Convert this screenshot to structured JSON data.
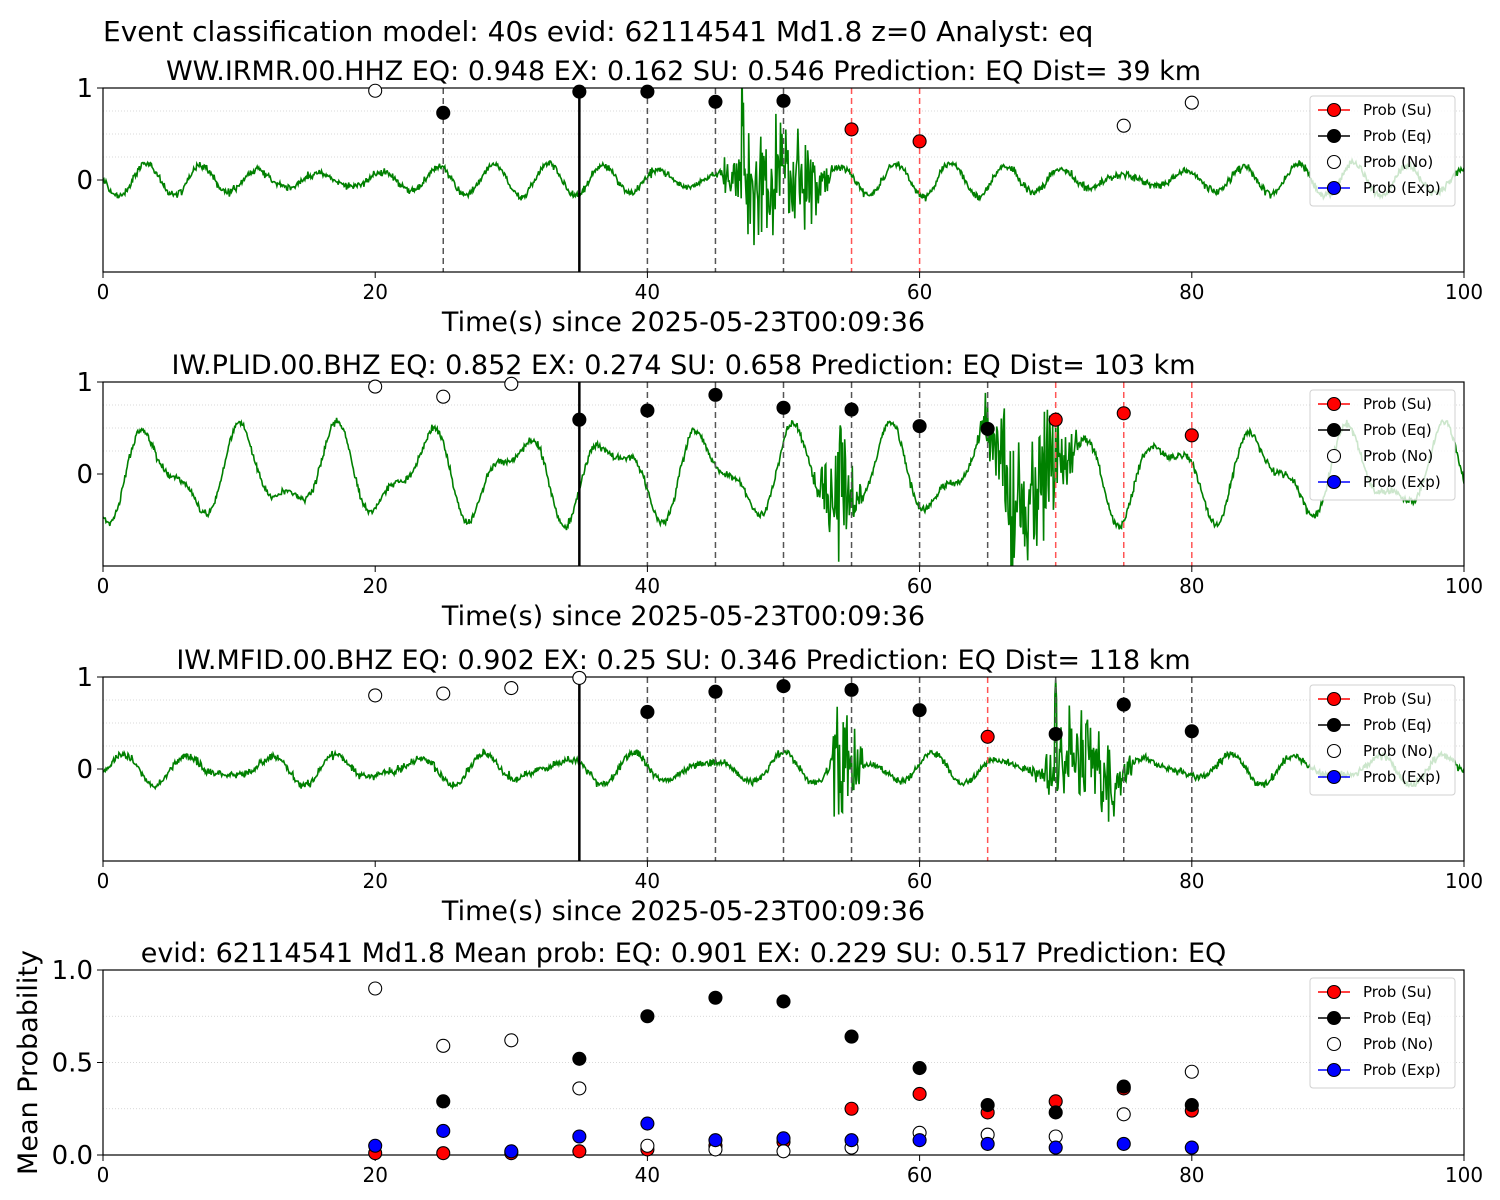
{
  "suptitle": "Event classification model: 40s evid: 62114541 Md1.8 z=0 Analyst: eq",
  "legend_labels": [
    "Prob (Su)",
    "Prob (Eq)",
    "Prob (No)",
    "Prob (Exp)"
  ],
  "colors": {
    "su": "#ff0000",
    "eq": "#000000",
    "no": "#ffffff",
    "exp": "#0000ff",
    "waveform": "#008000",
    "su_line": "#ff5555",
    "eq_line": "#555555",
    "pick_line": "#000000"
  },
  "chart_data": [
    {
      "type": "scatter",
      "title": "WW.IRMR.00.HHZ   EQ: 0.948  EX: 0.162  SU: 0.546   Prediction: EQ    Dist= 39 km",
      "xlabel": "Time(s) since 2025-05-23T00:09:36",
      "ylabel": "",
      "xlim": [
        0,
        100
      ],
      "ylim": [
        -1,
        1
      ],
      "xticks": [
        "0",
        "20",
        "40",
        "60",
        "80",
        "100"
      ],
      "yticks": [
        "0",
        "1"
      ],
      "grid": "horizontal dotted",
      "legend_position": "top-right",
      "p_pick": 35,
      "waveform": "noisy seismogram, burst between 45 and 54 s",
      "series": [
        {
          "name": "Prob (Su)",
          "x": [
            55,
            60
          ],
          "y": [
            0.55,
            0.42
          ]
        },
        {
          "name": "Prob (Eq)",
          "x": [
            25,
            35,
            40,
            45,
            50
          ],
          "y": [
            0.73,
            0.96,
            0.96,
            0.85,
            0.86
          ]
        },
        {
          "name": "Prob (No)",
          "x": [
            20,
            75,
            80
          ],
          "y": [
            0.97,
            0.59,
            0.84
          ]
        },
        {
          "name": "Prob (Exp)",
          "x": [],
          "y": []
        }
      ]
    },
    {
      "type": "scatter",
      "title": "IW.PLID.00.BHZ   EQ: 0.852  EX: 0.274  SU: 0.658   Prediction: EQ    Dist= 103 km",
      "xlabel": "Time(s) since 2025-05-23T00:09:36",
      "ylabel": "",
      "xlim": [
        0,
        100
      ],
      "ylim": [
        -1,
        1
      ],
      "xticks": [
        "0",
        "20",
        "40",
        "60",
        "80",
        "100"
      ],
      "yticks": [
        "0",
        "1"
      ],
      "grid": "horizontal dotted",
      "legend_position": "top-right",
      "p_pick": 35,
      "waveform": "large oscillating noise, strong burst between 64 and 72 s",
      "series": [
        {
          "name": "Prob (Su)",
          "x": [
            70,
            75,
            80
          ],
          "y": [
            0.59,
            0.66,
            0.42
          ]
        },
        {
          "name": "Prob (Eq)",
          "x": [
            35,
            40,
            45,
            50,
            55,
            60,
            65
          ],
          "y": [
            0.59,
            0.69,
            0.86,
            0.72,
            0.7,
            0.52,
            0.49
          ]
        },
        {
          "name": "Prob (No)",
          "x": [
            20,
            25,
            30
          ],
          "y": [
            0.95,
            0.84,
            0.98
          ]
        },
        {
          "name": "Prob (Exp)",
          "x": [],
          "y": []
        }
      ]
    },
    {
      "type": "scatter",
      "title": "IW.MFID.00.BHZ   EQ: 0.902  EX: 0.25  SU: 0.346   Prediction: EQ    Dist= 118 km",
      "xlabel": "Time(s) since 2025-05-23T00:09:36",
      "ylabel": "",
      "xlim": [
        0,
        100
      ],
      "ylim": [
        -1,
        1
      ],
      "xticks": [
        "0",
        "20",
        "40",
        "60",
        "80",
        "100"
      ],
      "yticks": [
        "0",
        "1"
      ],
      "grid": "horizontal dotted",
      "legend_position": "top-right",
      "p_pick": 35,
      "waveform": "noisy seismogram, bursts between 53 and 56 s and 68 and 76 s",
      "series": [
        {
          "name": "Prob (Su)",
          "x": [
            65
          ],
          "y": [
            0.35
          ]
        },
        {
          "name": "Prob (Eq)",
          "x": [
            40,
            45,
            50,
            55,
            60,
            70,
            75,
            80
          ],
          "y": [
            0.62,
            0.84,
            0.9,
            0.86,
            0.64,
            0.38,
            0.7,
            0.41
          ]
        },
        {
          "name": "Prob (No)",
          "x": [
            20,
            25,
            30,
            35
          ],
          "y": [
            0.8,
            0.82,
            0.88,
            0.99
          ]
        },
        {
          "name": "Prob (Exp)",
          "x": [],
          "y": []
        }
      ]
    },
    {
      "type": "scatter",
      "title": "evid: 62114541  Md1.8   Mean prob:   EQ: 0.901  EX: 0.229  SU: 0.517   Prediction: EQ",
      "xlabel": "",
      "ylabel": "Mean Probability",
      "xlim": [
        0,
        100
      ],
      "ylim": [
        0,
        1
      ],
      "xticks": [
        "0",
        "20",
        "40",
        "60",
        "80",
        "100"
      ],
      "yticks": [
        "0.0",
        "0.5",
        "1.0"
      ],
      "grid": "horizontal dotted",
      "legend_position": "top-right",
      "series": [
        {
          "name": "Prob (Su)",
          "x": [
            20,
            25,
            30,
            35,
            40,
            45,
            50,
            55,
            60,
            65,
            70,
            75,
            80
          ],
          "y": [
            0.01,
            0.01,
            0.01,
            0.02,
            0.03,
            0.05,
            0.07,
            0.25,
            0.33,
            0.23,
            0.29,
            0.36,
            0.24
          ]
        },
        {
          "name": "Prob (Eq)",
          "x": [
            25,
            35,
            40,
            45,
            50,
            55,
            60,
            65,
            70,
            75,
            80
          ],
          "y": [
            0.29,
            0.52,
            0.75,
            0.85,
            0.83,
            0.64,
            0.47,
            0.27,
            0.23,
            0.37,
            0.27
          ]
        },
        {
          "name": "Prob (No)",
          "x": [
            20,
            25,
            30,
            35,
            40,
            45,
            50,
            55,
            60,
            65,
            70,
            75,
            80
          ],
          "y": [
            0.9,
            0.59,
            0.62,
            0.36,
            0.05,
            0.03,
            0.02,
            0.04,
            0.12,
            0.11,
            0.1,
            0.22,
            0.45
          ]
        },
        {
          "name": "Prob (Exp)",
          "x": [
            20,
            25,
            30,
            35,
            40,
            45,
            50,
            55,
            60,
            65,
            70,
            75,
            80
          ],
          "y": [
            0.05,
            0.13,
            0.02,
            0.1,
            0.17,
            0.08,
            0.09,
            0.08,
            0.08,
            0.06,
            0.04,
            0.06,
            0.04
          ]
        }
      ]
    }
  ]
}
